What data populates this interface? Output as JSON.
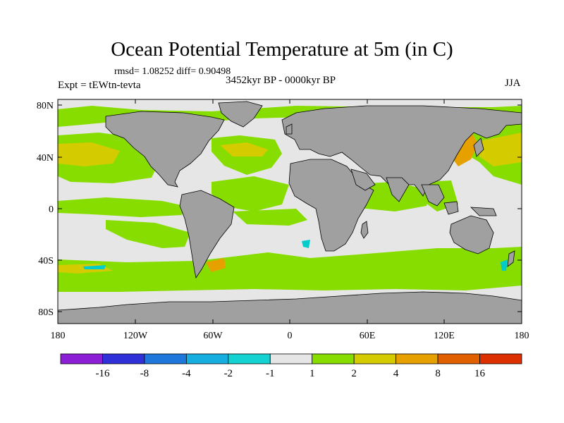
{
  "title": "Ocean Potential Temperature at 5m (in C)",
  "stats": "rmsd= 1.08252 diff= 0.90498",
  "experiment": "Expt = tEWtn-tevta",
  "period": "3452kyr BP - 0000kyr BP",
  "season": "JJA",
  "lat_labels": [
    "80N",
    "40N",
    "0",
    "40S",
    "80S"
  ],
  "lon_labels": [
    "180",
    "120W",
    "60W",
    "0",
    "60E",
    "120E",
    "180"
  ],
  "colors": {
    "land": "#a0a0a0",
    "ocean_neutral": "#e6e6e6",
    "warm_2": "#88dd00",
    "warm_4": "#d4cc00",
    "warm_8": "#e6a000",
    "warm_16": "#e06000",
    "cool_1": "#00cccc",
    "cool_2": "#00aadd"
  },
  "colorbar": {
    "boxes": [
      "#8c1ed6",
      "#3030d8",
      "#1e78dc",
      "#16aee0",
      "#14d2d2",
      "#e6e6e6",
      "#88dd00",
      "#d4cc00",
      "#e6a000",
      "#e06000",
      "#dc3000"
    ],
    "labels": [
      "-16",
      "-8",
      "-4",
      "-2",
      "-1",
      "1",
      "2",
      "4",
      "8",
      "16"
    ]
  }
}
